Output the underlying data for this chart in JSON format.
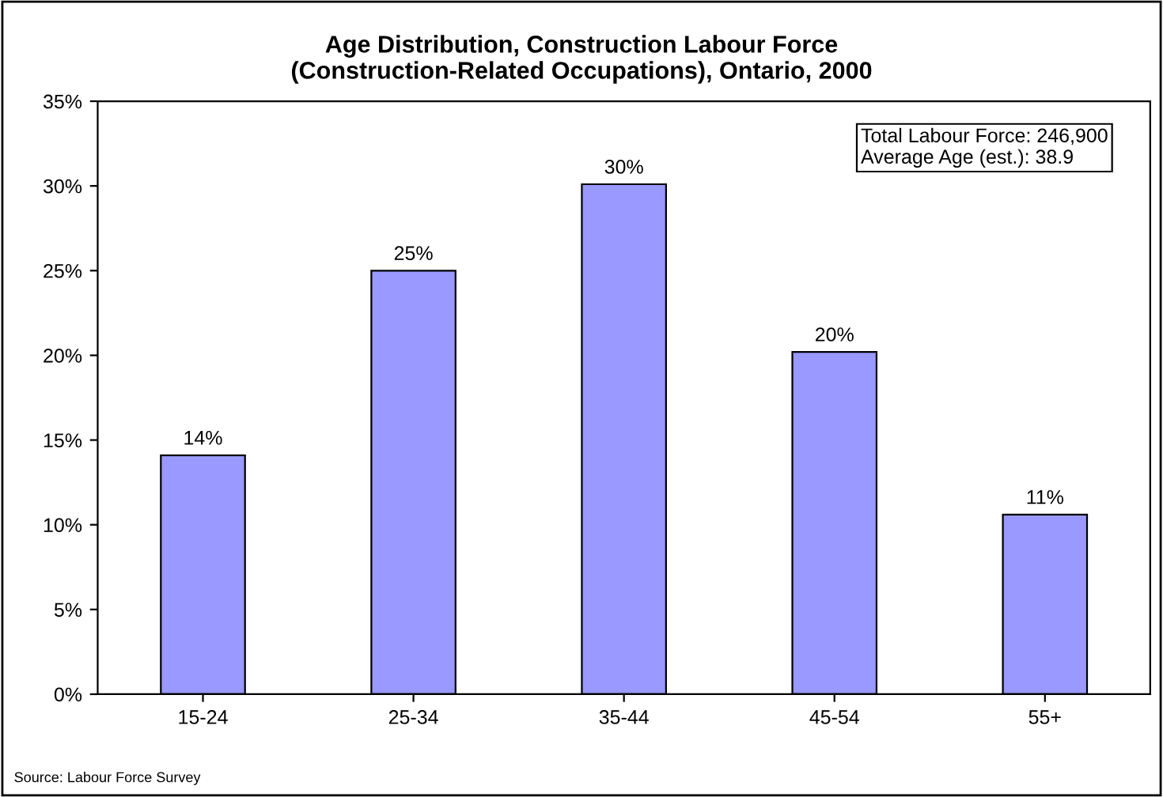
{
  "chart_data": {
    "type": "bar",
    "title": "Age Distribution, Construction Labour Force\n(Construction-Related Occupations), Ontario, 2000",
    "categories": [
      "15-24",
      "25-34",
      "35-44",
      "45-54",
      "55+"
    ],
    "values": [
      14.1,
      25.0,
      30.1,
      20.2,
      10.6
    ],
    "value_labels": [
      "14%",
      "25%",
      "30%",
      "20%",
      "11%"
    ],
    "color": "#9999ff",
    "ylim": [
      0,
      35
    ],
    "yticks": [
      {
        "value": 0,
        "label": "0%"
      },
      {
        "value": 5,
        "label": "5%"
      },
      {
        "value": 10,
        "label": "10%"
      },
      {
        "value": 15,
        "label": "15%"
      },
      {
        "value": 20,
        "label": "20%"
      },
      {
        "value": 25,
        "label": "25%"
      },
      {
        "value": 30,
        "label": "30%"
      },
      {
        "value": 35,
        "label": "35%"
      }
    ],
    "grid": false,
    "annotations": [
      "Total Labour Force: 246,900\nAverage Age (est.): 38.9",
      "Source: Labour Force Survey"
    ]
  }
}
